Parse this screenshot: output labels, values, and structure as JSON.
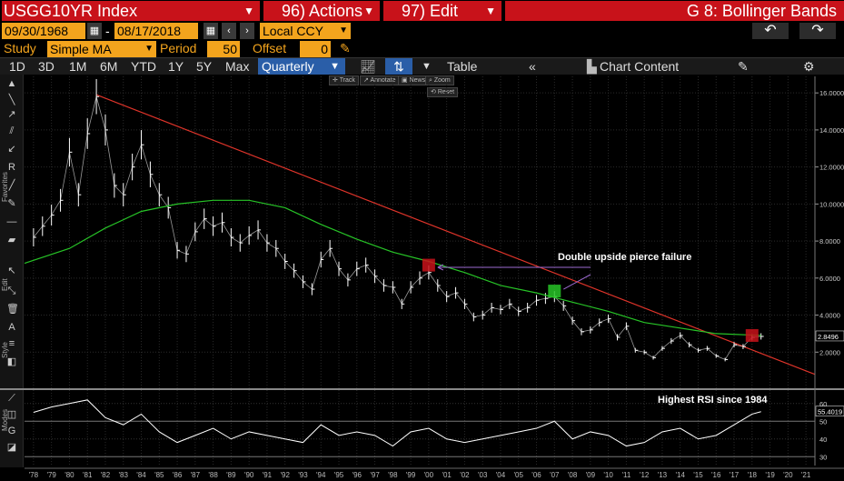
{
  "header": {
    "ticker": "USGG10YR Index",
    "actions_label": "96) Actions",
    "edit_label": "97) Edit",
    "window_title": "G 8: Bollinger Bands"
  },
  "dates": {
    "start": "09/30/1968",
    "end": "08/17/2018",
    "currency": "Local CCY"
  },
  "study": {
    "label": "Study",
    "type": "Simple MA",
    "period_label": "Period",
    "period": "50",
    "offset_label": "Offset",
    "offset": "0"
  },
  "toolbar": {
    "ranges": [
      "1D",
      "3D",
      "1M",
      "6M",
      "YTD",
      "1Y",
      "5Y",
      "Max"
    ],
    "frequency": "Quarterly",
    "table_label": "Table",
    "chart_content_label": "Chart Content"
  },
  "mini_tools": {
    "track": "Track",
    "annotate": "Annotate",
    "news": "News",
    "zoom": "Zoom",
    "reset": "Reset"
  },
  "side_labels": {
    "favorites": "Favorites",
    "edit": "Edit",
    "style": "Style",
    "modes": "Modes"
  },
  "annotations": {
    "pierce": "Double upside pierce failure",
    "rsi": "Highest RSI since 1984"
  },
  "colors": {
    "accent_red": "#c8121a",
    "accent_orange": "#f3a41d",
    "price": "#ffffff",
    "ma": "#27c427",
    "trendline": "#e0342a"
  },
  "chart_data": {
    "type": "line",
    "price_axis": {
      "ticks": [
        "16.0000",
        "14.0000",
        "12.0000",
        "10.0000",
        "8.0000",
        "6.0000",
        "4.0000",
        "2.0000"
      ],
      "last_value": "2.8496",
      "ylim": [
        0,
        16.5
      ]
    },
    "rsi_axis": {
      "ticks": [
        "60",
        "50",
        "40",
        "30"
      ],
      "last_value": "55.4019",
      "ylim": [
        25,
        65
      ]
    },
    "x_ticks": [
      "'78",
      "'79",
      "'80",
      "'81",
      "'82",
      "'83",
      "'84",
      "'85",
      "'86",
      "'87",
      "'88",
      "'89",
      "'90",
      "'91",
      "'92",
      "'93",
      "'94",
      "'95",
      "'96",
      "'97",
      "'98",
      "'99",
      "'00",
      "'01",
      "'02",
      "'03",
      "'04",
      "'05",
      "'06",
      "'07",
      "'08",
      "'09",
      "'10",
      "'11",
      "'12",
      "'13",
      "'14",
      "'15",
      "'16",
      "'17",
      "'18",
      "'19",
      "'20",
      "'21"
    ],
    "xlim": [
      1977.5,
      2021.5
    ],
    "series": [
      {
        "name": "USGG10YR",
        "x": [
          1978,
          1978.5,
          1979,
          1979.5,
          1980,
          1980.5,
          1981,
          1981.5,
          1982,
          1982.5,
          1983,
          1983.5,
          1984,
          1984.5,
          1985,
          1985.5,
          1986,
          1986.5,
          1987,
          1987.5,
          1988,
          1988.5,
          1989,
          1989.5,
          1990,
          1990.5,
          1991,
          1991.5,
          1992,
          1992.5,
          1993,
          1993.5,
          1994,
          1994.5,
          1995,
          1995.5,
          1996,
          1996.5,
          1997,
          1997.5,
          1998,
          1998.5,
          1999,
          1999.5,
          2000,
          2000.5,
          2001,
          2001.5,
          2002,
          2002.5,
          2003,
          2003.5,
          2004,
          2004.5,
          2005,
          2005.5,
          2006,
          2006.5,
          2007,
          2007.5,
          2008,
          2008.5,
          2009,
          2009.5,
          2010,
          2010.5,
          2011,
          2011.5,
          2012,
          2012.5,
          2013,
          2013.5,
          2014,
          2014.5,
          2015,
          2015.5,
          2016,
          2016.5,
          2017,
          2017.5,
          2018,
          2018.5
        ],
        "values": [
          8.2,
          8.8,
          9.4,
          10.2,
          12.8,
          10.5,
          13.8,
          15.8,
          14.0,
          11.0,
          10.5,
          12.0,
          13.2,
          11.6,
          10.5,
          9.8,
          7.5,
          7.3,
          8.5,
          9.2,
          8.8,
          9.0,
          8.2,
          7.9,
          8.3,
          8.6,
          7.9,
          7.6,
          6.9,
          6.4,
          5.8,
          5.4,
          7.0,
          7.6,
          6.5,
          5.9,
          6.5,
          6.7,
          6.1,
          5.6,
          5.5,
          4.6,
          5.5,
          6.0,
          6.3,
          5.6,
          5.0,
          5.2,
          4.6,
          3.9,
          4.0,
          4.4,
          4.3,
          4.6,
          4.2,
          4.4,
          4.8,
          4.9,
          5.0,
          4.5,
          3.7,
          3.1,
          3.2,
          3.6,
          3.8,
          2.8,
          3.4,
          2.1,
          2.0,
          1.7,
          2.2,
          2.6,
          2.9,
          2.4,
          2.1,
          2.2,
          1.8,
          1.6,
          2.4,
          2.3,
          2.8,
          2.85
        ]
      },
      {
        "name": "SMA 50",
        "x": [
          1977.5,
          1980,
          1982,
          1984,
          1986,
          1988,
          1990,
          1992,
          1994,
          1996,
          1998,
          2000,
          2002,
          2004,
          2006,
          2008,
          2010,
          2012,
          2014,
          2016,
          2018.5
        ],
        "values": [
          6.8,
          7.6,
          8.7,
          9.6,
          10.0,
          10.2,
          10.2,
          9.8,
          8.9,
          8.1,
          7.4,
          6.9,
          6.3,
          5.6,
          5.2,
          4.7,
          4.2,
          3.6,
          3.3,
          3.0,
          2.9
        ]
      },
      {
        "name": "RSI",
        "x": [
          1978,
          1979,
          1980,
          1981,
          1982,
          1983,
          1984,
          1985,
          1986,
          1987,
          1988,
          1989,
          1990,
          1991,
          1992,
          1993,
          1994,
          1995,
          1996,
          1997,
          1998,
          1999,
          2000,
          2001,
          2002,
          2003,
          2004,
          2005,
          2006,
          2007,
          2008,
          2009,
          2010,
          2011,
          2012,
          2013,
          2014,
          2015,
          2016,
          2017,
          2018,
          2018.5
        ],
        "values": [
          55,
          58,
          60,
          62,
          52,
          48,
          54,
          44,
          38,
          42,
          46,
          40,
          44,
          42,
          40,
          38,
          48,
          42,
          44,
          42,
          36,
          44,
          46,
          40,
          38,
          40,
          42,
          44,
          46,
          50,
          40,
          44,
          42,
          36,
          38,
          44,
          46,
          40,
          42,
          48,
          54,
          55.4
        ]
      }
    ],
    "trendline": {
      "x": [
        1981.5,
        2021.5
      ],
      "values": [
        15.9,
        0.8
      ]
    },
    "markers": [
      {
        "x": 2000,
        "value": 6.7,
        "color": "#c8121a"
      },
      {
        "x": 2007,
        "value": 5.3,
        "color": "#27c427"
      },
      {
        "x": 2018,
        "value": 2.9,
        "color": "#c8121a"
      }
    ]
  }
}
